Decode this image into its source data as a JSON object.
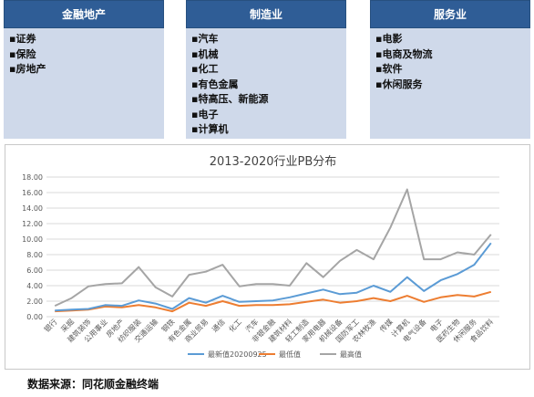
{
  "cards": [
    {
      "title": "金融地产",
      "items": [
        "证券",
        "保险",
        "房地产"
      ]
    },
    {
      "title": "制造业",
      "items": [
        "汽车",
        "机械",
        "化工",
        "有色金属",
        "特高压、新能源",
        "电子",
        "计算机"
      ]
    },
    {
      "title": "服务业",
      "items": [
        "电影",
        "电商及物流",
        "软件",
        "休闲服务"
      ]
    }
  ],
  "source": "数据来源：同花顺金融终端",
  "colors": {
    "card_header": "#2f5d96",
    "card_body": "#cfd9ea",
    "latest": "#5b9bd5",
    "min": "#ed7d31",
    "max": "#a5a5a5"
  },
  "chart_data": {
    "type": "line",
    "title": "2013-2020行业PB分布",
    "ylim": [
      0,
      18
    ],
    "yticks": [
      "0.00",
      "2.00",
      "4.00",
      "6.00",
      "8.00",
      "10.00",
      "12.00",
      "14.00",
      "16.00",
      "18.00"
    ],
    "grid": true,
    "legend_position": "bottom",
    "categories": [
      "银行",
      "采掘",
      "建筑装饰",
      "公用事业",
      "房地产",
      "纺织服装",
      "交通运输",
      "钢铁",
      "有色金属",
      "商业贸易",
      "通信",
      "化工",
      "汽车",
      "非银金融",
      "建筑材料",
      "轻工制造",
      "家用电器",
      "机械设备",
      "国防军工",
      "农林牧渔",
      "传媒",
      "计算机",
      "电气设备",
      "电子",
      "医药生物",
      "休闲服务",
      "食品饮料"
    ],
    "series": [
      {
        "name": "最新值20200925",
        "color": "#5b9bd5",
        "values": [
          0.8,
          0.9,
          1.0,
          1.5,
          1.4,
          2.1,
          1.7,
          1.0,
          2.4,
          1.8,
          2.7,
          1.9,
          2.0,
          2.1,
          2.5,
          3.0,
          3.5,
          2.9,
          3.1,
          4.0,
          3.2,
          5.1,
          3.3,
          4.7,
          5.5,
          6.7,
          9.5
        ]
      },
      {
        "name": "最低值",
        "color": "#ed7d31",
        "values": [
          0.7,
          0.8,
          0.9,
          1.3,
          1.2,
          1.5,
          1.2,
          0.7,
          1.8,
          1.4,
          2.0,
          1.4,
          1.5,
          1.5,
          1.6,
          1.9,
          2.2,
          1.8,
          2.0,
          2.4,
          2.0,
          2.7,
          1.9,
          2.5,
          2.8,
          2.6,
          3.2
        ]
      },
      {
        "name": "最高值",
        "color": "#a5a5a5",
        "values": [
          1.4,
          2.4,
          3.9,
          4.2,
          4.3,
          6.4,
          3.8,
          2.6,
          5.4,
          5.8,
          6.7,
          3.9,
          4.2,
          4.2,
          4.0,
          6.9,
          5.1,
          7.2,
          8.6,
          7.4,
          11.5,
          16.4,
          7.4,
          7.4,
          8.3,
          8.0,
          10.6
        ]
      }
    ]
  }
}
